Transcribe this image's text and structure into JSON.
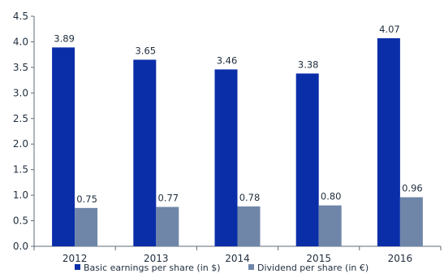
{
  "chart_data": {
    "type": "bar",
    "categories": [
      "2012",
      "2013",
      "2014",
      "2015",
      "2016"
    ],
    "series": [
      {
        "name": "Basic earnings per share (in $)",
        "values": [
          3.89,
          3.65,
          3.46,
          3.38,
          4.07
        ],
        "labels": [
          "3.89",
          "3.65",
          "3.46",
          "3.38",
          "4.07"
        ],
        "color": "#0a2ea8"
      },
      {
        "name": "Dividend per share (in €)",
        "values": [
          0.75,
          0.77,
          0.78,
          0.8,
          0.96
        ],
        "labels": [
          "0.75",
          "0.77",
          "0.78",
          "0.80",
          "0.96"
        ],
        "color": "#6f86a9"
      }
    ],
    "ylim": [
      0,
      4.5
    ],
    "yticks": [
      "0.0",
      "0.5",
      "1.0",
      "1.5",
      "2.0",
      "2.5",
      "3.0",
      "3.5",
      "4.0",
      "4.5"
    ],
    "grid": false,
    "legend_position": "bottom"
  }
}
